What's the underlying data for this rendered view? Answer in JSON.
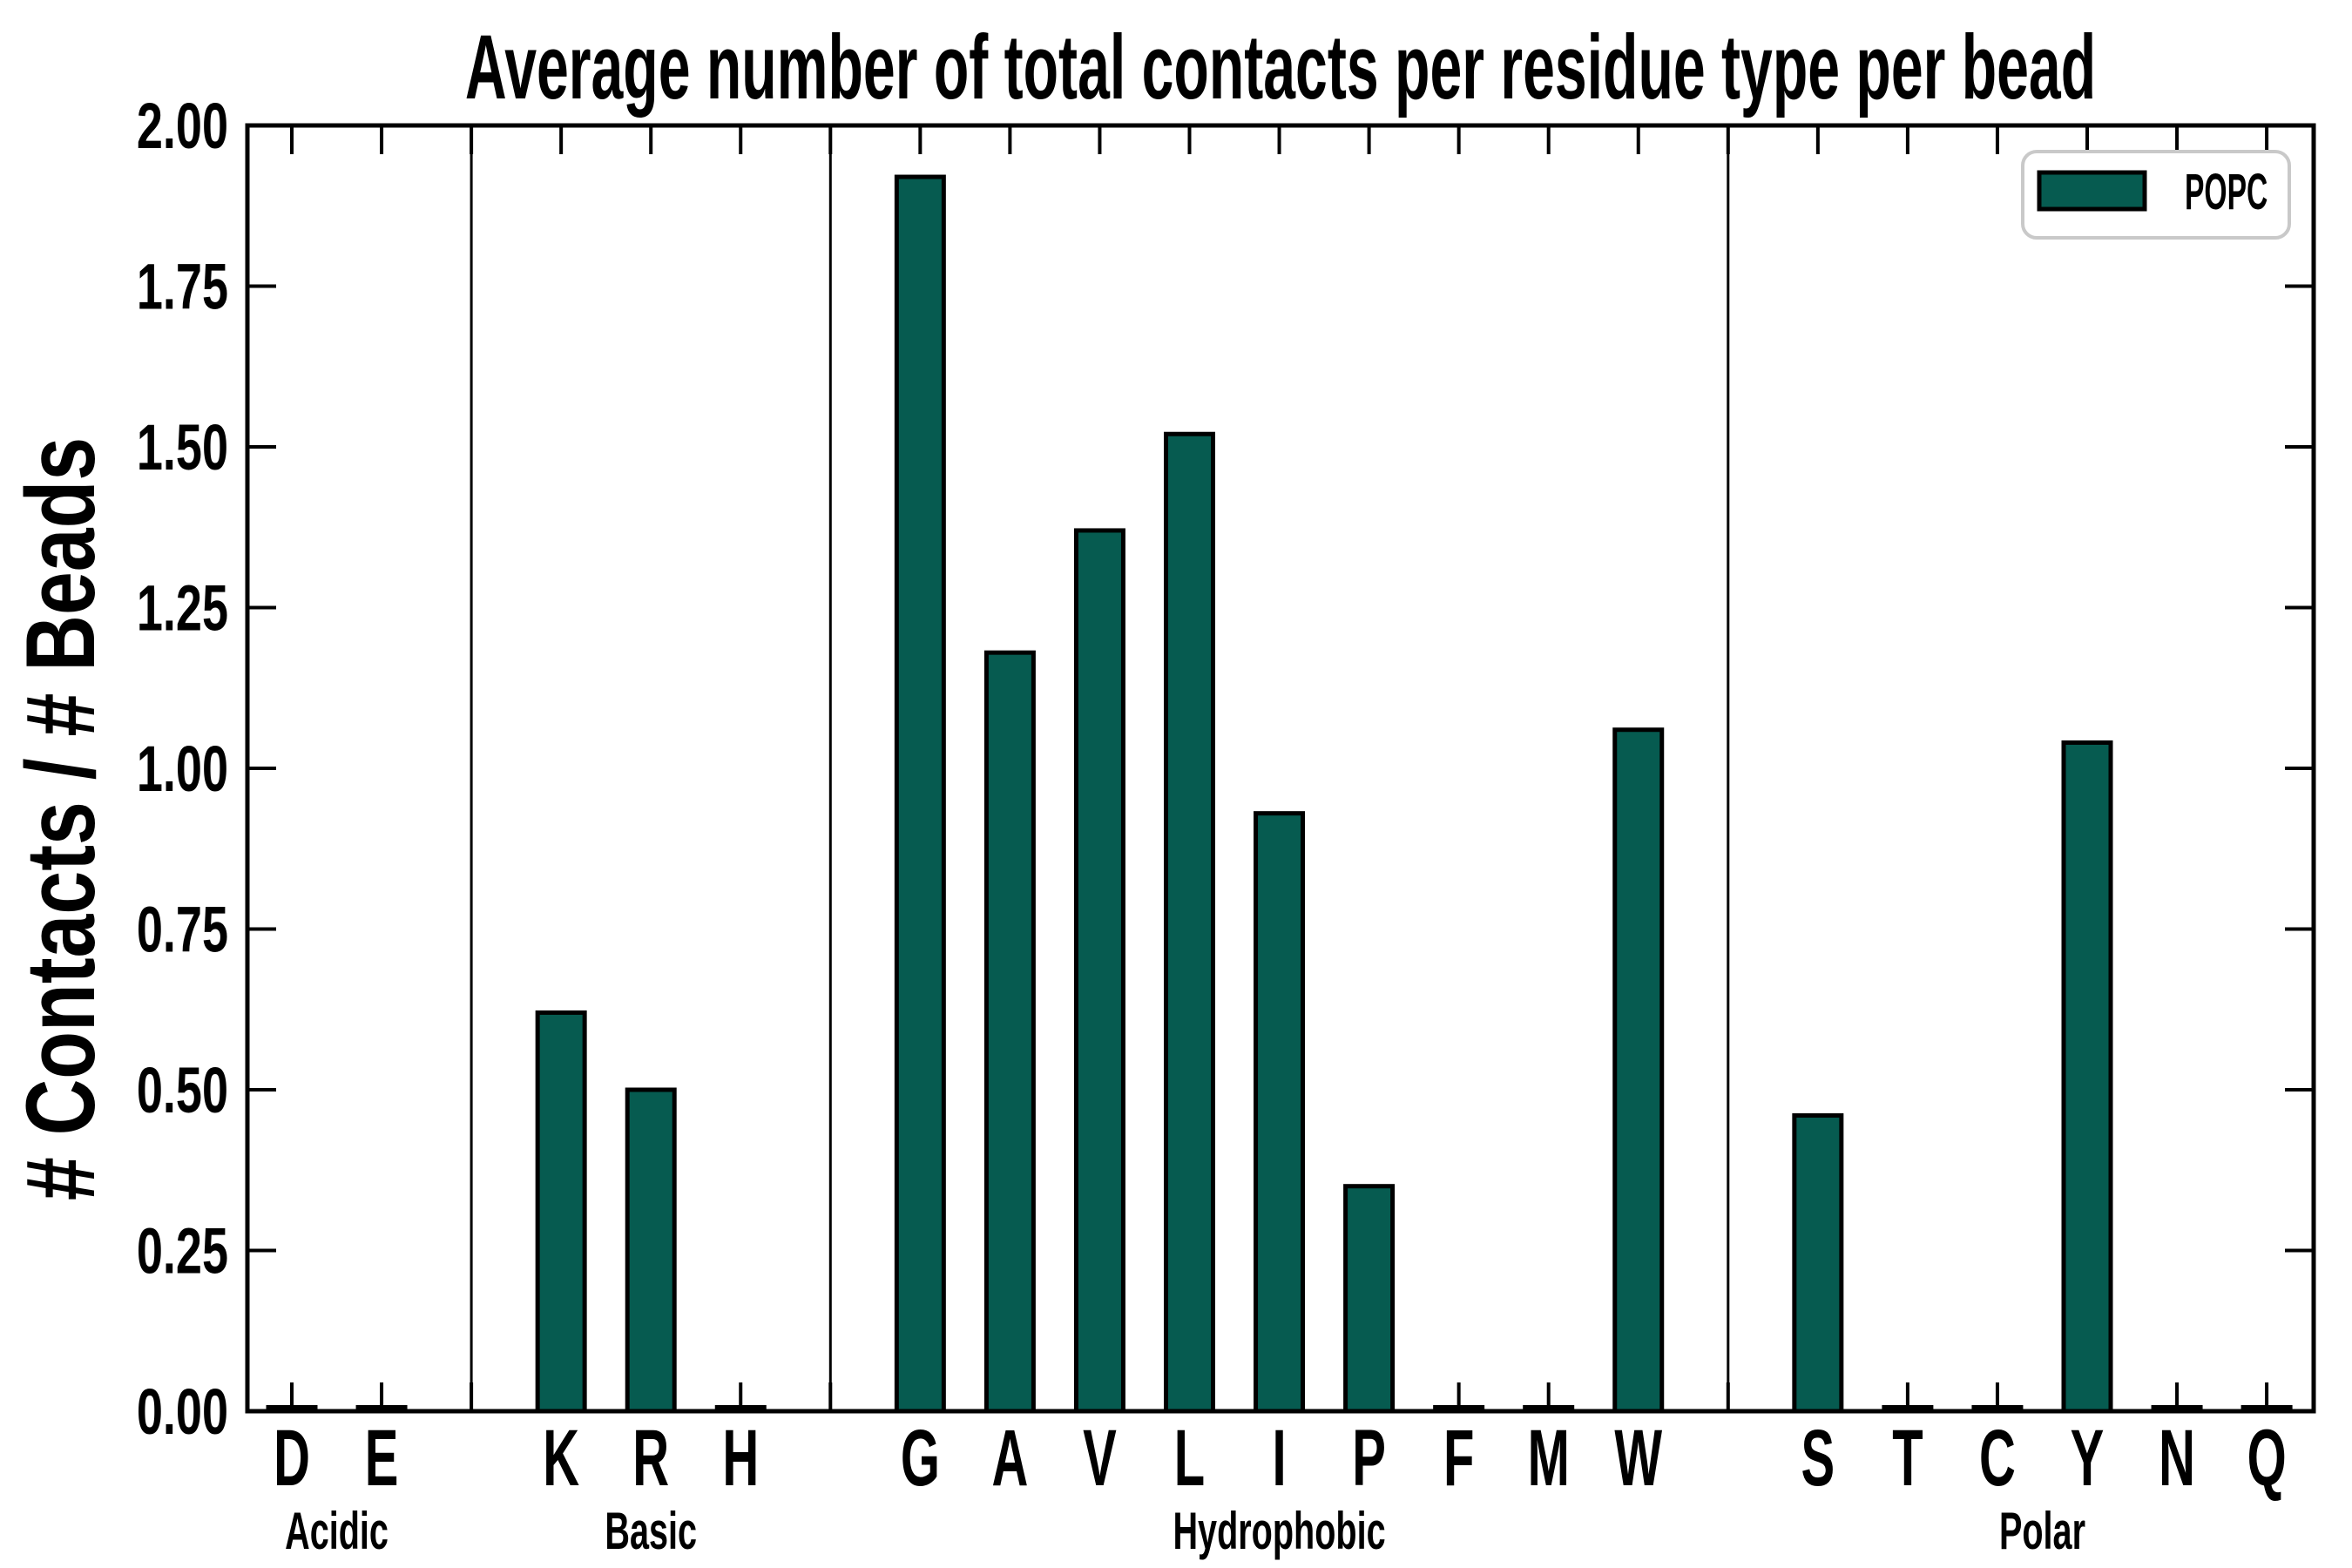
{
  "chart_data": {
    "type": "bar",
    "title": "Average number of total contacts per residue type per bead",
    "ylabel": "# Contacts / # Beads",
    "xlabel": "",
    "ylim": [
      0.0,
      2.0
    ],
    "ytick_labels": [
      "0.00",
      "0.25",
      "0.50",
      "0.75",
      "1.00",
      "1.25",
      "1.50",
      "1.75",
      "2.00"
    ],
    "grid": false,
    "legend": {
      "label": "POPC",
      "position": "upper right"
    },
    "colors": {
      "bar_fill": "#065b50",
      "bar_edge": "#000000",
      "axis": "#000000",
      "legend_border": "#c9c9c9",
      "background": "#ffffff"
    },
    "groups": [
      {
        "name": "Acidic",
        "categories": [
          "D",
          "E"
        ],
        "values": [
          0.0,
          0.0
        ]
      },
      {
        "name": "Basic",
        "categories": [
          "K",
          "R",
          "H"
        ],
        "values": [
          0.62,
          0.5,
          0.0
        ]
      },
      {
        "name": "Hydrophobic",
        "categories": [
          "G",
          "A",
          "V",
          "L",
          "I",
          "P",
          "F",
          "M",
          "W"
        ],
        "values": [
          1.92,
          1.18,
          1.37,
          1.52,
          0.93,
          0.35,
          0.0,
          0.0,
          1.06
        ]
      },
      {
        "name": "Polar",
        "categories": [
          "S",
          "T",
          "C",
          "Y",
          "N",
          "Q"
        ],
        "values": [
          0.46,
          0.0,
          0.0,
          1.04,
          0.0,
          0.0
        ]
      }
    ]
  }
}
